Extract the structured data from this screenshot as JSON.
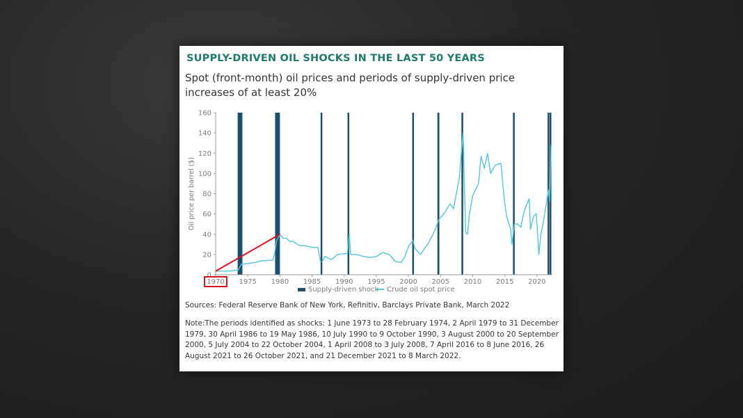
{
  "title": "SUPPLY-DRIVEN OIL SHOCKS IN THE LAST 50 YEARS",
  "subtitle": "Spot (front-month) oil prices and periods of supply-driven price increases of at least 20%",
  "sources": "Sources: Federal Reserve Bank of New York, Refinitiv, Barclays Private Bank, March 2022",
  "note": "Note:The periods identified as shocks: 1 June 1973 to 28 February 1974, 2 April 1979 to 31 December 1979, 30 April 1986 to 19 May 1986, 10 July 1990 to 9 October 1990, 3 August 2000 to 20 September 2000, 5 July 2004 to 22 October 2004, 1 April 2008 to 3 July 2008, 7 April 2016 to 8 June 2016, 26 August 2021 to 26 October 2021, and 21 December 2021 to 8 March 2022.",
  "colors": {
    "title": "#1d7a6c",
    "shock": "#1a4f6e",
    "price": "#4fc6df",
    "highlight": "#e0101c"
  },
  "chart_data": {
    "type": "line",
    "ylabel": "Oil price per barrel ($)",
    "ylim": [
      0,
      160
    ],
    "yticks": [
      0,
      20,
      40,
      60,
      80,
      100,
      120,
      140,
      160
    ],
    "xlim": [
      1970,
      2022.4
    ],
    "xticks": [
      1970,
      1975,
      1980,
      1985,
      1990,
      1995,
      2000,
      2005,
      2010,
      2015,
      2020
    ],
    "xtick_labels": [
      "1970",
      "1975",
      "1980",
      "1985",
      "1990",
      "1995",
      "2000",
      "2005",
      "2010",
      "2015",
      "2020"
    ],
    "grid": false,
    "legend_position": "bottom",
    "legend": [
      "Supply-driven shock",
      "Crude oil spot price"
    ],
    "highlighted_tick": "1970",
    "shocks": [
      {
        "start": 1973.42,
        "end": 1974.16
      },
      {
        "start": 1979.25,
        "end": 1980.0
      },
      {
        "start": 1986.33,
        "end": 1986.38
      },
      {
        "start": 1990.52,
        "end": 1990.77
      },
      {
        "start": 2000.59,
        "end": 2000.72
      },
      {
        "start": 2004.51,
        "end": 2004.81
      },
      {
        "start": 2008.25,
        "end": 2008.5
      },
      {
        "start": 2016.27,
        "end": 2016.44
      },
      {
        "start": 2021.65,
        "end": 2021.82
      },
      {
        "start": 2021.97,
        "end": 2022.19
      }
    ],
    "series": [
      {
        "name": "Crude oil spot price",
        "x": [
          1970,
          1971,
          1972,
          1973,
          1973.5,
          1974,
          1975,
          1976,
          1977,
          1978,
          1978.9,
          1979.2,
          1979.5,
          1980,
          1980.5,
          1981,
          1981.5,
          1982,
          1983,
          1984,
          1985,
          1985.9,
          1986.3,
          1986.6,
          1987,
          1988,
          1989,
          1990.5,
          1990.8,
          1991,
          1992,
          1993,
          1994,
          1995,
          1996,
          1997,
          1998,
          1998.9,
          1999.5,
          2000,
          2000.7,
          2001,
          2001.9,
          2002.5,
          2003,
          2004,
          2004.8,
          2005.5,
          2006.5,
          2007,
          2007.9,
          2008.5,
          2008.9,
          2009.2,
          2009.5,
          2010,
          2010.9,
          2011.3,
          2011.8,
          2012.3,
          2012.8,
          2013.5,
          2014.4,
          2014.9,
          2015.3,
          2015.9,
          2016.1,
          2016.5,
          2017,
          2017.5,
          2018,
          2018.8,
          2018.99,
          2019.5,
          2019.9,
          2020.3,
          2020.6,
          2021,
          2021.5,
          2021.8,
          2021.95,
          2022.1,
          2022.19
        ],
        "values": [
          3.5,
          3.6,
          3.6,
          4.3,
          4.5,
          10.5,
          11,
          12,
          13.5,
          14,
          14.5,
          22,
          34,
          40,
          36,
          36,
          33,
          33,
          29,
          28.5,
          27,
          27,
          13,
          13,
          18,
          15,
          20,
          21,
          40,
          20,
          20,
          18,
          17,
          18,
          22,
          20,
          13,
          12,
          19,
          28,
          34,
          26,
          20,
          26,
          30,
          42,
          55,
          60,
          70,
          65,
          95,
          140,
          42,
          40,
          60,
          78,
          90,
          117,
          105,
          120,
          100,
          108,
          110,
          75,
          57,
          45,
          30,
          50,
          50,
          47,
          63,
          75,
          45,
          58,
          60,
          20,
          40,
          52,
          72,
          84,
          72,
          95,
          128
        ]
      }
    ]
  }
}
